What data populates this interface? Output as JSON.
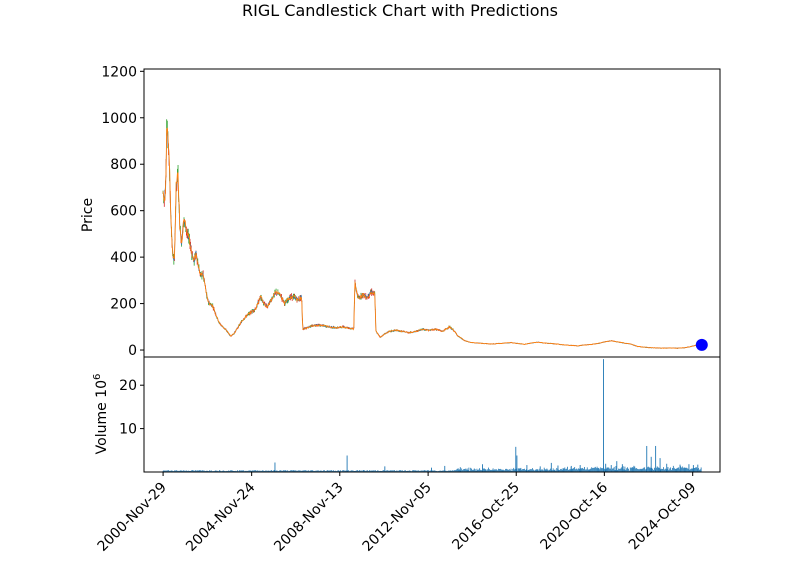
{
  "chart_data": [
    {
      "type": "candlestick",
      "title": "RIGL Candlestick Chart with Predictions",
      "ylabel": "Price",
      "ylim": [
        -30,
        1210
      ],
      "yticks": [
        0,
        200,
        400,
        600,
        800,
        1000,
        1200
      ],
      "xticks": [
        "2000-Nov-29",
        "2004-Nov-24",
        "2008-Nov-13",
        "2012-Nov-05",
        "2016-Oct-25",
        "2020-Oct-16",
        "2024-Oct-09"
      ],
      "xtick_years": [
        2000.91,
        2004.9,
        2008.87,
        2012.85,
        2016.82,
        2020.79,
        2024.77
      ],
      "xlim": [
        2000.05,
        2026.0
      ],
      "price_path": [
        [
          2000.91,
          680
        ],
        [
          2000.97,
          640
        ],
        [
          2001.03,
          720
        ],
        [
          2001.08,
          1000
        ],
        [
          2001.12,
          900
        ],
        [
          2001.17,
          870
        ],
        [
          2001.25,
          600
        ],
        [
          2001.33,
          420
        ],
        [
          2001.42,
          380
        ],
        [
          2001.5,
          700
        ],
        [
          2001.58,
          760
        ],
        [
          2001.67,
          520
        ],
        [
          2001.75,
          460
        ],
        [
          2001.83,
          560
        ],
        [
          2001.92,
          540
        ],
        [
          2002.0,
          500
        ],
        [
          2002.1,
          470
        ],
        [
          2002.2,
          420
        ],
        [
          2002.3,
          380
        ],
        [
          2002.4,
          420
        ],
        [
          2002.5,
          360
        ],
        [
          2002.6,
          320
        ],
        [
          2002.7,
          330
        ],
        [
          2002.8,
          280
        ],
        [
          2002.9,
          220
        ],
        [
          2003.0,
          200
        ],
        [
          2003.15,
          190
        ],
        [
          2003.3,
          150
        ],
        [
          2003.45,
          115
        ],
        [
          2003.6,
          100
        ],
        [
          2003.8,
          80
        ],
        [
          2003.95,
          60
        ],
        [
          2004.1,
          70
        ],
        [
          2004.3,
          100
        ],
        [
          2004.5,
          130
        ],
        [
          2004.7,
          150
        ],
        [
          2004.9,
          165
        ],
        [
          2005.1,
          180
        ],
        [
          2005.3,
          230
        ],
        [
          2005.45,
          200
        ],
        [
          2005.6,
          185
        ],
        [
          2005.8,
          220
        ],
        [
          2006.0,
          250
        ],
        [
          2006.2,
          235
        ],
        [
          2006.4,
          200
        ],
        [
          2006.6,
          225
        ],
        [
          2006.8,
          230
        ],
        [
          2007.0,
          215
        ],
        [
          2007.15,
          230
        ],
        [
          2007.2,
          90
        ],
        [
          2007.5,
          100
        ],
        [
          2007.8,
          108
        ],
        [
          2008.1,
          105
        ],
        [
          2008.4,
          100
        ],
        [
          2008.7,
          95
        ],
        [
          2009.0,
          100
        ],
        [
          2009.3,
          95
        ],
        [
          2009.5,
          90
        ],
        [
          2009.55,
          290
        ],
        [
          2009.7,
          220
        ],
        [
          2009.9,
          240
        ],
        [
          2010.1,
          225
        ],
        [
          2010.3,
          250
        ],
        [
          2010.45,
          240
        ],
        [
          2010.5,
          80
        ],
        [
          2010.7,
          55
        ],
        [
          2010.9,
          70
        ],
        [
          2011.1,
          80
        ],
        [
          2011.4,
          85
        ],
        [
          2011.7,
          80
        ],
        [
          2012.0,
          75
        ],
        [
          2012.3,
          80
        ],
        [
          2012.6,
          90
        ],
        [
          2012.9,
          85
        ],
        [
          2013.2,
          90
        ],
        [
          2013.5,
          80
        ],
        [
          2013.8,
          100
        ],
        [
          2014.0,
          85
        ],
        [
          2014.2,
          60
        ],
        [
          2014.5,
          40
        ],
        [
          2014.8,
          32
        ],
        [
          2015.1,
          30
        ],
        [
          2015.4,
          28
        ],
        [
          2015.7,
          26
        ],
        [
          2016.0,
          28
        ],
        [
          2016.3,
          30
        ],
        [
          2016.6,
          32
        ],
        [
          2016.9,
          28
        ],
        [
          2017.2,
          25
        ],
        [
          2017.5,
          30
        ],
        [
          2017.8,
          34
        ],
        [
          2018.1,
          30
        ],
        [
          2018.4,
          28
        ],
        [
          2018.7,
          25
        ],
        [
          2019.0,
          22
        ],
        [
          2019.3,
          20
        ],
        [
          2019.6,
          18
        ],
        [
          2019.9,
          22
        ],
        [
          2020.2,
          24
        ],
        [
          2020.5,
          28
        ],
        [
          2020.8,
          35
        ],
        [
          2021.1,
          40
        ],
        [
          2021.4,
          35
        ],
        [
          2021.7,
          30
        ],
        [
          2022.0,
          25
        ],
        [
          2022.3,
          15
        ],
        [
          2022.6,
          12
        ],
        [
          2022.9,
          10
        ],
        [
          2023.2,
          9
        ],
        [
          2023.5,
          8
        ],
        [
          2023.8,
          9
        ],
        [
          2024.1,
          8
        ],
        [
          2024.4,
          10
        ],
        [
          2024.7,
          15
        ],
        [
          2024.95,
          22
        ],
        [
          2025.15,
          25
        ]
      ],
      "prediction": {
        "x": 2025.18,
        "y": 22,
        "color": "#0000ff"
      },
      "colors": {
        "up": "#2ca02c",
        "down": "#d62728",
        "close_line": "#ff7f0e",
        "open_line": "#1f77b4"
      }
    },
    {
      "type": "bar",
      "ylabel": "Volume  10",
      "ylabel_exponent": "6",
      "ylim": [
        0,
        26.5
      ],
      "yticks": [
        10,
        20
      ],
      "baseline": 0.2,
      "spikes": [
        [
          2005.95,
          2.2
        ],
        [
          2009.2,
          3.8
        ],
        [
          2010.9,
          1.3
        ],
        [
          2013.0,
          1.0
        ],
        [
          2013.6,
          1.4
        ],
        [
          2014.3,
          1.1
        ],
        [
          2015.3,
          1.8
        ],
        [
          2016.8,
          5.8
        ],
        [
          2016.85,
          3.8
        ],
        [
          2017.3,
          1.6
        ],
        [
          2017.9,
          1.3
        ],
        [
          2018.4,
          2.1
        ],
        [
          2018.7,
          1.5
        ],
        [
          2019.3,
          1.4
        ],
        [
          2019.7,
          1.6
        ],
        [
          2020.75,
          26.0
        ],
        [
          2020.85,
          1.9
        ],
        [
          2021.1,
          1.6
        ],
        [
          2021.35,
          2.5
        ],
        [
          2021.6,
          1.8
        ],
        [
          2022.7,
          6.0
        ],
        [
          2022.9,
          3.5
        ],
        [
          2023.1,
          6.0
        ],
        [
          2023.3,
          3.2
        ],
        [
          2023.6,
          1.9
        ],
        [
          2024.2,
          1.7
        ],
        [
          2024.6,
          1.8
        ],
        [
          2024.8,
          1.6
        ],
        [
          2025.0,
          1.7
        ]
      ],
      "bar_color": "#1f77b4"
    }
  ]
}
